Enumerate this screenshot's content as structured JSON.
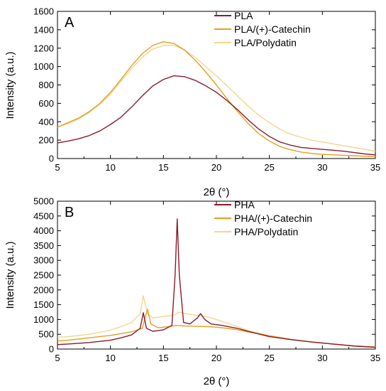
{
  "chart_data": [
    {
      "type": "line",
      "panel_label": "A",
      "xlabel": "2θ (°)",
      "ylabel": "Intensity (a.u.)",
      "xlim": [
        5,
        35
      ],
      "ylim": [
        0,
        1600
      ],
      "xticks": [
        5,
        10,
        15,
        20,
        25,
        30,
        35
      ],
      "yticks": [
        0,
        200,
        400,
        600,
        800,
        1000,
        1200,
        1400,
        1600
      ],
      "grid": false,
      "legend_position": "top-right",
      "series": [
        {
          "name": "PLA",
          "color": "#8b1a2b",
          "x": [
            5,
            6,
            7,
            8,
            9,
            10,
            11,
            12,
            13,
            14,
            15,
            16,
            17,
            18,
            19,
            20,
            21,
            22,
            23,
            24,
            25,
            26,
            27,
            28,
            29,
            30,
            31,
            32,
            33,
            34,
            35
          ],
          "y": [
            170,
            190,
            215,
            250,
            300,
            370,
            450,
            560,
            680,
            790,
            860,
            900,
            890,
            850,
            790,
            720,
            630,
            530,
            420,
            320,
            240,
            180,
            145,
            120,
            110,
            100,
            90,
            80,
            65,
            50,
            40
          ]
        },
        {
          "name": "PLA/(+)-Catechin",
          "color": "#e3a020",
          "x": [
            5,
            6,
            7,
            8,
            9,
            10,
            11,
            12,
            13,
            14,
            15,
            16,
            17,
            18,
            19,
            20,
            21,
            22,
            23,
            24,
            25,
            26,
            27,
            28,
            29,
            30,
            31,
            32,
            33,
            34,
            35
          ],
          "y": [
            340,
            390,
            440,
            510,
            600,
            720,
            860,
            1010,
            1140,
            1230,
            1270,
            1250,
            1180,
            1070,
            940,
            800,
            650,
            510,
            380,
            270,
            190,
            130,
            95,
            70,
            55,
            45,
            40,
            35,
            30,
            25,
            20
          ]
        },
        {
          "name": "PLA/Polydatin",
          "color": "#f2d690",
          "x": [
            5,
            6,
            7,
            8,
            9,
            10,
            11,
            12,
            13,
            14,
            15,
            16,
            17,
            18,
            19,
            20,
            21,
            22,
            23,
            24,
            25,
            26,
            27,
            28,
            29,
            30,
            31,
            32,
            33,
            34,
            35
          ],
          "y": [
            340,
            380,
            430,
            500,
            590,
            700,
            840,
            980,
            1100,
            1190,
            1230,
            1230,
            1180,
            1100,
            1000,
            900,
            790,
            680,
            570,
            470,
            390,
            320,
            265,
            230,
            200,
            180,
            160,
            140,
            120,
            100,
            80
          ]
        }
      ]
    },
    {
      "type": "line",
      "panel_label": "B",
      "xlabel": "2θ (°)",
      "ylabel": "Intensity (a.u.)",
      "xlim": [
        5,
        35
      ],
      "ylim": [
        0,
        5000
      ],
      "xticks": [
        5,
        10,
        15,
        20,
        25,
        30,
        35
      ],
      "yticks": [
        0,
        500,
        1000,
        1500,
        2000,
        2500,
        3000,
        3500,
        4000,
        4500,
        5000
      ],
      "grid": false,
      "legend_position": "top-right",
      "series": [
        {
          "name": "PHA",
          "color": "#8b1a2b",
          "x": [
            5,
            6,
            8,
            10,
            11,
            12,
            12.8,
            13.1,
            13.4,
            14,
            15,
            15.8,
            16.1,
            16.3,
            16.5,
            16.9,
            17.5,
            18.2,
            18.5,
            18.9,
            19.5,
            20.5,
            22,
            23,
            25,
            27,
            29,
            31,
            33,
            35
          ],
          "y": [
            150,
            170,
            220,
            300,
            380,
            480,
            700,
            1230,
            700,
            600,
            650,
            800,
            2500,
            4400,
            2500,
            900,
            850,
            1050,
            1200,
            1000,
            850,
            800,
            700,
            600,
            420,
            320,
            240,
            170,
            100,
            60
          ]
        },
        {
          "name": "PHA/(+)-Catechin",
          "color": "#e3a020",
          "x": [
            5,
            6,
            8,
            10,
            11,
            12,
            13,
            13.3,
            13.5,
            13.8,
            14.5,
            15.5,
            16.2,
            17,
            18,
            19,
            20,
            21,
            22,
            23,
            25,
            27,
            29,
            31,
            33,
            35
          ],
          "y": [
            280,
            300,
            380,
            460,
            520,
            580,
            700,
            1100,
            1350,
            850,
            720,
            760,
            800,
            780,
            770,
            760,
            740,
            700,
            650,
            580,
            450,
            330,
            240,
            170,
            110,
            70
          ]
        },
        {
          "name": "PHA/Polydatin",
          "color": "#f2d690",
          "x": [
            5,
            6,
            8,
            10,
            11,
            12,
            12.8,
            13.1,
            13.5,
            14,
            15,
            16,
            16.5,
            17,
            18,
            19,
            20,
            21,
            22,
            23,
            25,
            27,
            29,
            31,
            33,
            35
          ],
          "y": [
            400,
            420,
            500,
            640,
            760,
            900,
            1200,
            1800,
            1200,
            1050,
            1100,
            1150,
            1250,
            1200,
            1150,
            1100,
            1000,
            880,
            760,
            620,
            450,
            330,
            240,
            170,
            110,
            70
          ]
        }
      ]
    }
  ]
}
